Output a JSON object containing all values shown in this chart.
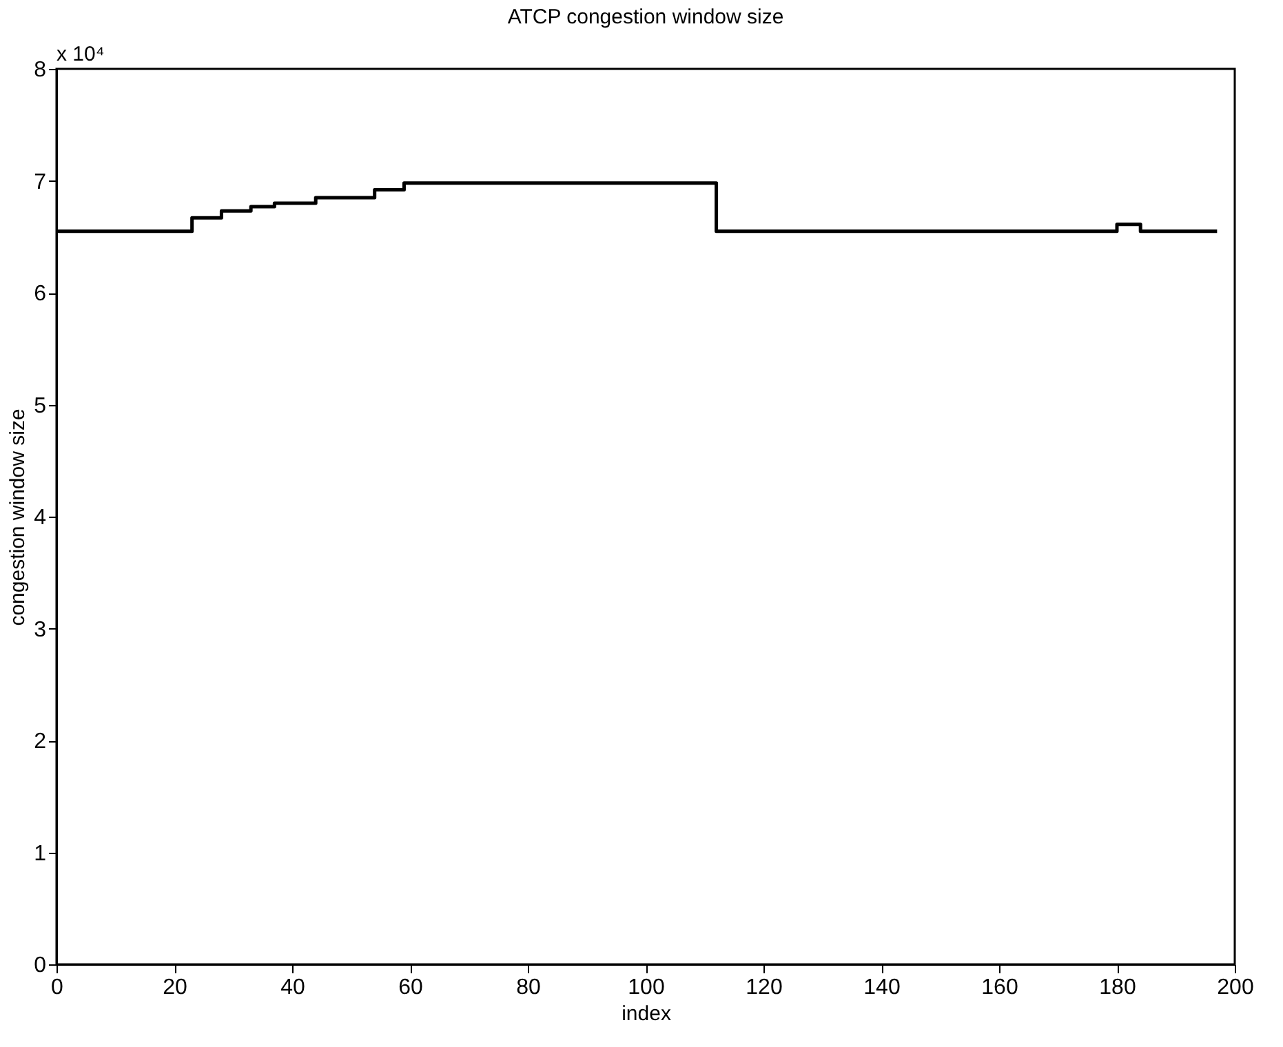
{
  "chart_data": {
    "type": "step",
    "title": "ATCP congestion window size",
    "xlabel": "index",
    "ylabel": "congestion window size",
    "annotations": [
      "x 10⁴"
    ],
    "x": [
      0,
      23,
      28,
      33,
      37,
      44,
      54,
      59,
      112,
      180,
      184,
      197
    ],
    "series": [
      {
        "color": "#000000",
        "values": [
          6.55,
          6.67,
          6.73,
          6.77,
          6.8,
          6.85,
          6.92,
          6.98,
          6.55,
          6.61,
          6.55,
          6.55
        ]
      }
    ],
    "xlim": [
      0,
      200
    ],
    "xticks": [
      0,
      20,
      40,
      60,
      80,
      100,
      120,
      140,
      160,
      180,
      200
    ],
    "ylim": [
      0,
      8
    ],
    "yticks": [
      0,
      1,
      2,
      3,
      4,
      5,
      6,
      7,
      8
    ],
    "grid": false
  }
}
